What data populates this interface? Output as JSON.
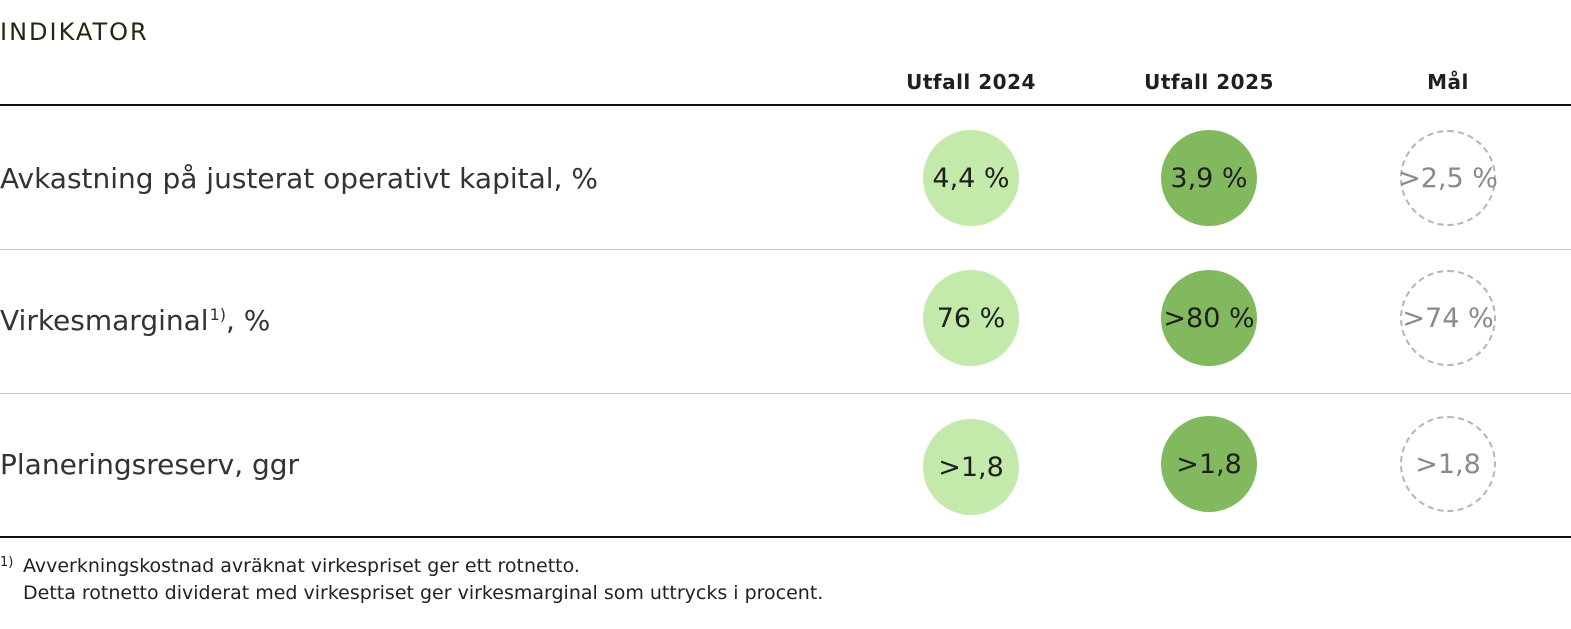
{
  "heading": "INDIKATOR",
  "columns": {
    "c2024": "Utfall 2024",
    "c2025": "Utfall 2025",
    "goal": "Mål"
  },
  "rows": [
    {
      "label": "Avkastning på justerat operativt kapital, %",
      "footnote_ref": "",
      "label_suffix": "",
      "v2024": "4,4 %",
      "v2025": "3,9 %",
      "goal": ">2,5 %"
    },
    {
      "label": "Virkesmarginal",
      "footnote_ref": "1)",
      "label_suffix": ", %",
      "v2024": "76 %",
      "v2025": ">80 %",
      "goal": ">74 %"
    },
    {
      "label": "Planeringsreserv, ggr",
      "footnote_ref": "",
      "label_suffix": "",
      "v2024": ">1,8",
      "v2025": ">1,8",
      "goal": ">1,8"
    }
  ],
  "footnote": {
    "marker": "1)",
    "line1": "Avverkningskostnad avräknat virkespriset ger ett rotnetto.",
    "line2": "Detta rotnetto dividerat med virkespriset ger virkesmarginal som uttrycks i procent."
  },
  "colors": {
    "outcome_2024": "#c4eaab",
    "outcome_2025": "#82b95e",
    "goal_border": "#b5b5b5"
  }
}
